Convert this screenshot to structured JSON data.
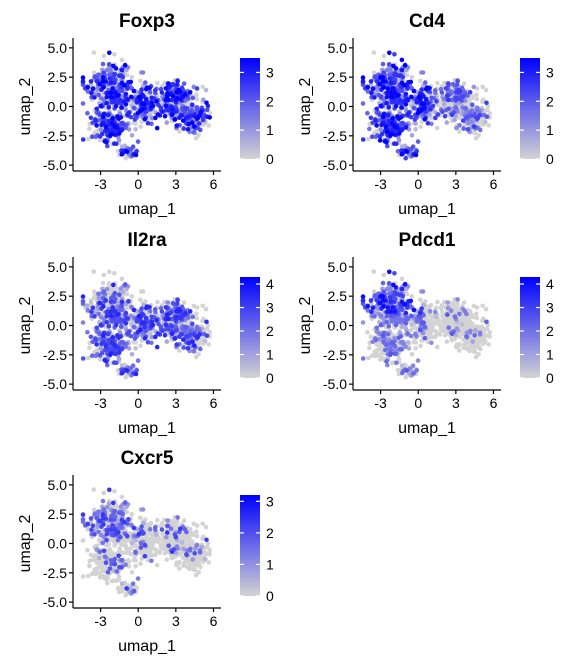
{
  "chart_data": [
    {
      "type": "scatter",
      "title": "Foxp3",
      "xlabel": "umap_1",
      "ylabel": "umap_2",
      "xticks": [
        -3,
        0,
        3,
        6
      ],
      "xtick_labels": [
        "-3",
        "0",
        "3",
        "6"
      ],
      "yticks": [
        -5,
        -2.5,
        0,
        2.5,
        5
      ],
      "ytick_labels": [
        "-5.0",
        "-2.5",
        "0.0",
        "2.5",
        "5.0"
      ],
      "xlim": [
        -5.2,
        6.6
      ],
      "ylim": [
        -5.5,
        5.5
      ],
      "legend": {
        "position": "right",
        "ticks": [
          0,
          1,
          2,
          3
        ],
        "tick_labels": [
          "0",
          "1",
          "2",
          "3"
        ],
        "max": 3.5,
        "low_color": "#d3d3d3",
        "high_color": "#0000ff"
      },
      "expression_pattern": "broad"
    },
    {
      "type": "scatter",
      "title": "Cd4",
      "xlabel": "umap_1",
      "ylabel": "umap_2",
      "xticks": [
        -3,
        0,
        3,
        6
      ],
      "xtick_labels": [
        "-3",
        "0",
        "3",
        "6"
      ],
      "yticks": [
        -5,
        -2.5,
        0,
        2.5,
        5
      ],
      "ytick_labels": [
        "-5.0",
        "-2.5",
        "0.0",
        "2.5",
        "5.0"
      ],
      "xlim": [
        -5.2,
        6.6
      ],
      "ylim": [
        -5.5,
        5.5
      ],
      "legend": {
        "position": "right",
        "ticks": [
          0,
          1,
          2,
          3
        ],
        "tick_labels": [
          "0",
          "1",
          "2",
          "3"
        ],
        "max": 3.5,
        "low_color": "#d3d3d3",
        "high_color": "#0000ff"
      },
      "expression_pattern": "left-high"
    },
    {
      "type": "scatter",
      "title": "Il2ra",
      "xlabel": "umap_1",
      "ylabel": "umap_2",
      "xticks": [
        -3,
        0,
        3,
        6
      ],
      "xtick_labels": [
        "-3",
        "0",
        "3",
        "6"
      ],
      "yticks": [
        -5,
        -2.5,
        0,
        2.5,
        5
      ],
      "ytick_labels": [
        "-5.0",
        "-2.5",
        "0.0",
        "2.5",
        "5.0"
      ],
      "xlim": [
        -5.2,
        6.6
      ],
      "ylim": [
        -5.5,
        5.5
      ],
      "legend": {
        "position": "right",
        "ticks": [
          0,
          1,
          2,
          3,
          4
        ],
        "tick_labels": [
          "0",
          "1",
          "2",
          "3",
          "4"
        ],
        "max": 4.3,
        "low_color": "#d3d3d3",
        "high_color": "#0000ff"
      },
      "expression_pattern": "lower-middle"
    },
    {
      "type": "scatter",
      "title": "Pdcd1",
      "xlabel": "umap_1",
      "ylabel": "umap_2",
      "xticks": [
        -3,
        0,
        3,
        6
      ],
      "xtick_labels": [
        "-3",
        "0",
        "3",
        "6"
      ],
      "yticks": [
        -5,
        -2.5,
        0,
        2.5,
        5
      ],
      "ytick_labels": [
        "-5.0",
        "-2.5",
        "0.0",
        "2.5",
        "5.0"
      ],
      "xlim": [
        -5.2,
        6.6
      ],
      "ylim": [
        -5.5,
        5.5
      ],
      "legend": {
        "position": "right",
        "ticks": [
          0,
          1,
          2,
          3,
          4
        ],
        "tick_labels": [
          "0",
          "1",
          "2",
          "3",
          "4"
        ],
        "max": 4.3,
        "low_color": "#d3d3d3",
        "high_color": "#0000ff"
      },
      "expression_pattern": "upper-left"
    },
    {
      "type": "scatter",
      "title": "Cxcr5",
      "xlabel": "umap_1",
      "ylabel": "umap_2",
      "xticks": [
        -3,
        0,
        3,
        6
      ],
      "xtick_labels": [
        "-3",
        "0",
        "3",
        "6"
      ],
      "yticks": [
        -5,
        -2.5,
        0,
        2.5,
        5
      ],
      "ytick_labels": [
        "-5.0",
        "-2.5",
        "0.0",
        "2.5",
        "5.0"
      ],
      "xlim": [
        -5.2,
        6.6
      ],
      "ylim": [
        -5.5,
        5.5
      ],
      "legend": {
        "position": "right",
        "ticks": [
          0,
          1,
          2,
          3
        ],
        "tick_labels": [
          "0",
          "1",
          "2",
          "3"
        ],
        "max": 3.2,
        "low_color": "#d3d3d3",
        "high_color": "#0000ff"
      },
      "expression_pattern": "sparse-upper-left"
    }
  ]
}
